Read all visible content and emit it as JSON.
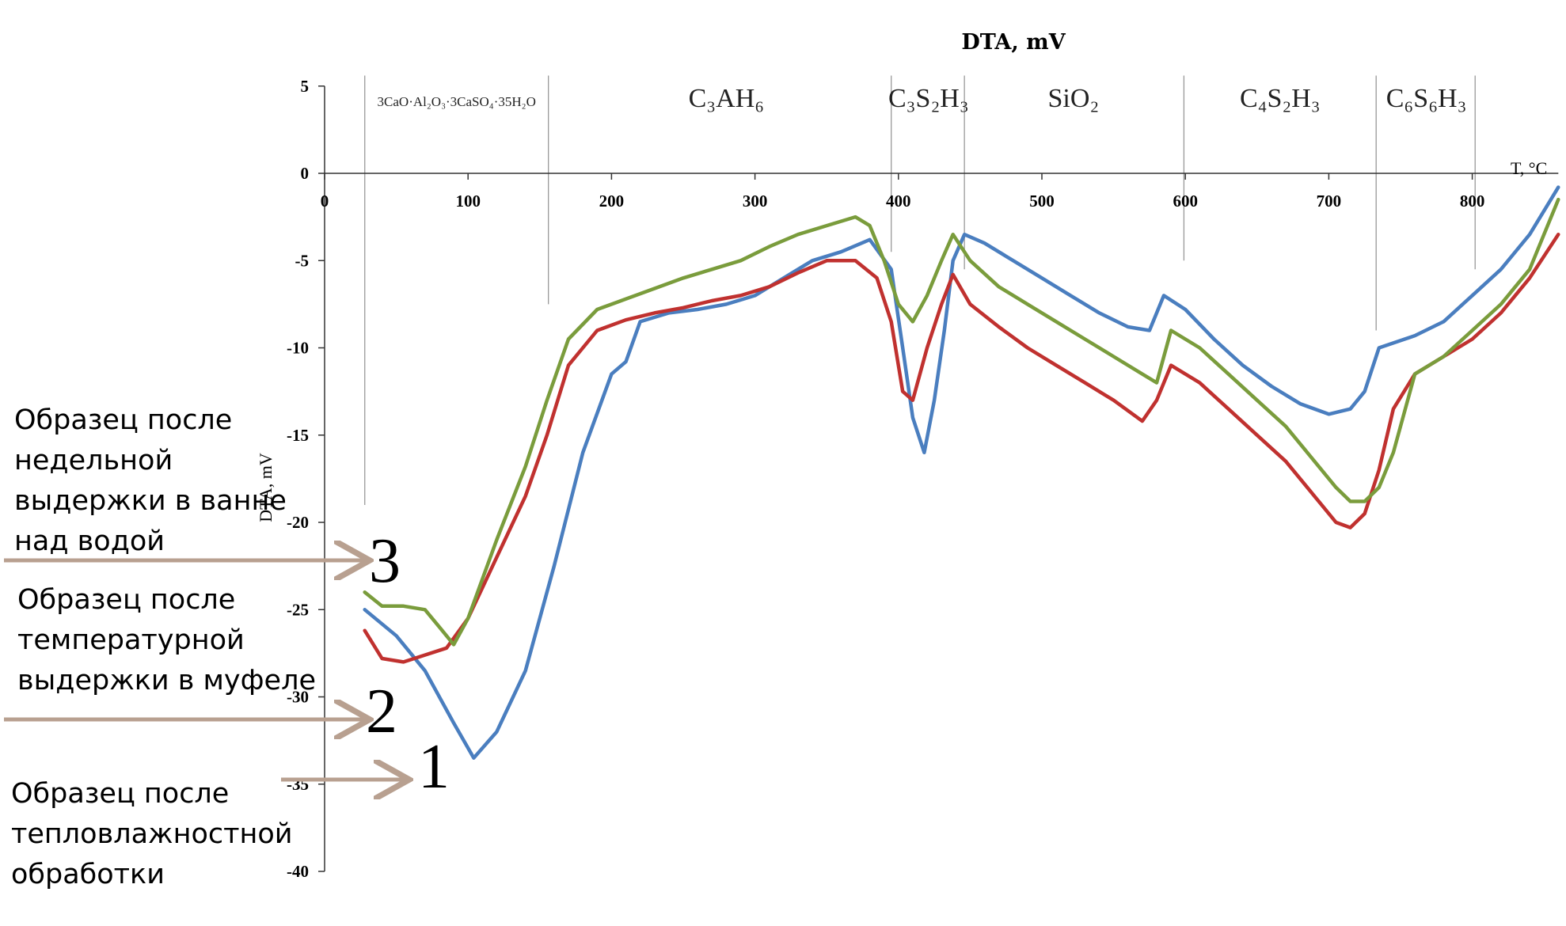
{
  "chart_data": {
    "type": "line",
    "title": "DTA, mV",
    "ylabel": "DTA, mV",
    "xlabel": "T, °C",
    "xlim": [
      0,
      860
    ],
    "ylim": [
      -40,
      5
    ],
    "x_ticks": [
      "0",
      "100",
      "200",
      "300",
      "400",
      "500",
      "600",
      "700",
      "800"
    ],
    "y_ticks": [
      "5",
      "0",
      "-5",
      "-10",
      "-15",
      "-20",
      "-25",
      "-30",
      "-35",
      "-40"
    ],
    "grid": false,
    "phase_boundaries": [
      28,
      156,
      395,
      446,
      599,
      733,
      802
    ],
    "phase_regions": [
      {
        "label": "3CaO·Al₂O₃·3CaSO₄·35H₂O",
        "x": 92
      },
      {
        "label": "C₃AH₆",
        "x": 280
      },
      {
        "label": "C₃S₂H₃",
        "x": 421
      },
      {
        "label": "SiO₂",
        "x": 522
      },
      {
        "label": "C₄S₂H₃",
        "x": 666
      },
      {
        "label": "C₆S₆H₃",
        "x": 768
      }
    ],
    "series": [
      {
        "name": "1",
        "color": "#4a7ebf",
        "x": [
          28,
          50,
          70,
          90,
          104,
          120,
          140,
          160,
          180,
          200,
          210,
          220,
          240,
          260,
          280,
          300,
          320,
          340,
          360,
          380,
          395,
          403,
          410,
          418,
          425,
          432,
          438,
          446,
          460,
          480,
          500,
          520,
          540,
          560,
          575,
          585,
          600,
          620,
          640,
          660,
          680,
          700,
          715,
          725,
          735,
          760,
          780,
          800,
          820,
          840,
          860
        ],
        "y": [
          -25,
          -26.5,
          -28.5,
          -31.5,
          -33.5,
          -32,
          -28.5,
          -22.5,
          -16,
          -11.5,
          -10.8,
          -8.5,
          -8,
          -7.8,
          -7.5,
          -7,
          -6,
          -5,
          -4.5,
          -3.8,
          -5.5,
          -10,
          -14,
          -16,
          -13,
          -9,
          -5,
          -3.5,
          -4,
          -5,
          -6,
          -7,
          -8,
          -8.8,
          -9,
          -7,
          -7.8,
          -9.5,
          -11,
          -12.2,
          -13.2,
          -13.8,
          -13.5,
          -12.5,
          -10,
          -9.3,
          -8.5,
          -7,
          -5.5,
          -3.5,
          -0.8
        ]
      },
      {
        "name": "2",
        "color": "#c0312f",
        "x": [
          28,
          40,
          55,
          70,
          85,
          100,
          120,
          140,
          155,
          170,
          190,
          210,
          230,
          250,
          270,
          290,
          310,
          330,
          350,
          370,
          385,
          395,
          403,
          410,
          420,
          430,
          438,
          450,
          470,
          490,
          510,
          530,
          550,
          570,
          580,
          590,
          610,
          630,
          650,
          670,
          690,
          705,
          715,
          725,
          735,
          745,
          760,
          780,
          800,
          820,
          840,
          860
        ],
        "y": [
          -26.2,
          -27.8,
          -28,
          -27.6,
          -27.2,
          -25.5,
          -22,
          -18.5,
          -15,
          -11,
          -9,
          -8.4,
          -8,
          -7.7,
          -7.3,
          -7,
          -6.5,
          -5.7,
          -5,
          -5,
          -6,
          -8.5,
          -12.5,
          -13,
          -10,
          -7.5,
          -5.8,
          -7.5,
          -8.8,
          -10,
          -11,
          -12,
          -13,
          -14.2,
          -13,
          -11,
          -12,
          -13.5,
          -15,
          -16.5,
          -18.5,
          -20,
          -20.3,
          -19.5,
          -17,
          -13.5,
          -11.5,
          -10.5,
          -9.5,
          -8,
          -6,
          -3.5
        ]
      },
      {
        "name": "3",
        "color": "#7a9c3c",
        "x": [
          28,
          40,
          55,
          70,
          80,
          90,
          100,
          120,
          140,
          155,
          170,
          190,
          210,
          230,
          250,
          270,
          290,
          310,
          330,
          350,
          370,
          380,
          390,
          400,
          410,
          420,
          430,
          438,
          450,
          470,
          490,
          510,
          530,
          550,
          570,
          580,
          590,
          610,
          630,
          650,
          670,
          690,
          705,
          715,
          725,
          735,
          745,
          760,
          780,
          800,
          820,
          840,
          860
        ],
        "y": [
          -24,
          -24.8,
          -24.8,
          -25,
          -26,
          -27,
          -25.5,
          -21,
          -16.8,
          -13,
          -9.5,
          -7.8,
          -7.2,
          -6.6,
          -6,
          -5.5,
          -5,
          -4.2,
          -3.5,
          -3,
          -2.5,
          -3,
          -5,
          -7.5,
          -8.5,
          -7,
          -5,
          -3.5,
          -5,
          -6.5,
          -7.5,
          -8.5,
          -9.5,
          -10.5,
          -11.5,
          -12,
          -9,
          -10,
          -11.5,
          -13,
          -14.5,
          -16.5,
          -18,
          -18.8,
          -18.8,
          -18,
          -16,
          -11.5,
          -10.5,
          -9,
          -7.5,
          -5.5,
          -1.5
        ]
      }
    ],
    "curve_numbers": [
      "3",
      "2",
      "1"
    ],
    "annotations": [
      "Образец после\nнедельной\nвыдержки в ванне\nнад водой",
      "Образец после\nтемпературной\nвыдержки в муфеле",
      "Образец после\nтепловлажностной\nобработки"
    ],
    "arrow_color": "#b8a090"
  }
}
